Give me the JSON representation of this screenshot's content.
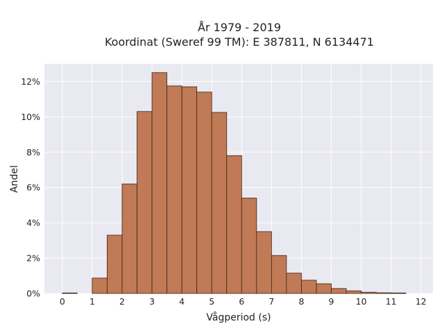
{
  "chart_data": {
    "type": "bar",
    "title_line1": "År 1979 - 2019",
    "title_line2": "Koordinat (Sweref 99 TM): E 387811, N 6134471",
    "xlabel": "Vågperiod (s)",
    "ylabel": "Andel",
    "xlim": [
      -0.6,
      12.4
    ],
    "ylim": [
      0,
      13
    ],
    "x_ticks": [
      0,
      1,
      2,
      3,
      4,
      5,
      6,
      7,
      8,
      9,
      10,
      11,
      12
    ],
    "y_ticks": [
      0,
      2,
      4,
      6,
      8,
      10,
      12
    ],
    "y_tick_labels": [
      "0%",
      "2%",
      "4%",
      "6%",
      "8%",
      "10%",
      "12%"
    ],
    "bin_width": 0.5,
    "bins": [
      {
        "start": 0.0,
        "value": 0.03
      },
      {
        "start": 0.5,
        "value": 0.0
      },
      {
        "start": 1.0,
        "value": 0.87
      },
      {
        "start": 1.5,
        "value": 3.3
      },
      {
        "start": 2.0,
        "value": 6.2
      },
      {
        "start": 2.5,
        "value": 10.3
      },
      {
        "start": 3.0,
        "value": 12.5
      },
      {
        "start": 3.5,
        "value": 11.75
      },
      {
        "start": 4.0,
        "value": 11.7
      },
      {
        "start": 4.5,
        "value": 11.4
      },
      {
        "start": 5.0,
        "value": 10.25
      },
      {
        "start": 5.5,
        "value": 7.8
      },
      {
        "start": 6.0,
        "value": 5.4
      },
      {
        "start": 6.5,
        "value": 3.5
      },
      {
        "start": 7.0,
        "value": 2.15
      },
      {
        "start": 7.5,
        "value": 1.15
      },
      {
        "start": 8.0,
        "value": 0.75
      },
      {
        "start": 8.5,
        "value": 0.55
      },
      {
        "start": 9.0,
        "value": 0.28
      },
      {
        "start": 9.5,
        "value": 0.15
      },
      {
        "start": 10.0,
        "value": 0.07
      },
      {
        "start": 10.5,
        "value": 0.04
      },
      {
        "start": 11.0,
        "value": 0.03
      }
    ],
    "grid": true,
    "colors": {
      "bar_fill": "#c07a55",
      "bar_edge": "#3a2418",
      "plot_bg": "#e9e9f1",
      "grid": "#ffffff"
    }
  }
}
